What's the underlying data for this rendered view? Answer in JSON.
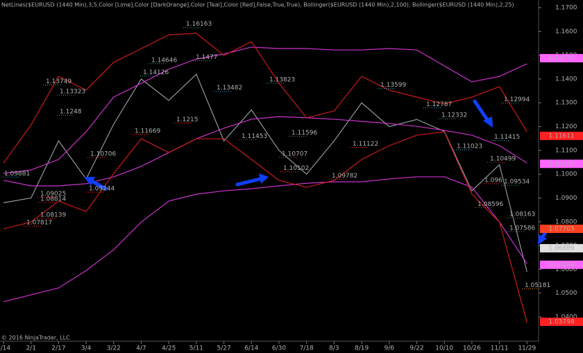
{
  "chart_data": {
    "type": "line",
    "title": "NetLines($EURUSD (1440 Min),3,5,Color [Lime],Color [DarkOrange],Color [Teal],Color [Red],False,True,True), Bollinger($EURUSD (1440 Min),2,100), Bollinger($EURUSD (1440 Min),2,25)",
    "copyright": "© 2016 NinjaTrader, LLC",
    "categories": [
      "1/14",
      "2/1",
      "2/17",
      "3/4",
      "3/22",
      "4/7",
      "4/25",
      "5/11",
      "5/27",
      "6/14",
      "6/30",
      "7/18",
      "8/3",
      "8/19",
      "9/6",
      "9/22",
      "10/10",
      "10/26",
      "11/11",
      "11/29"
    ],
    "ylim": [
      1.0304,
      1.1732
    ],
    "yticks": [
      {
        "value": 1.04,
        "label": "1.0400"
      },
      {
        "value": 1.05,
        "label": "1.0500"
      },
      {
        "value": 1.06,
        "label": "1.0600"
      },
      {
        "value": 1.07,
        "label": "1.0700"
      },
      {
        "value": 1.08,
        "label": "1.0800"
      },
      {
        "value": 1.09,
        "label": "1.0900"
      },
      {
        "value": 1.1,
        "label": "1.1000"
      },
      {
        "value": 1.11,
        "label": "1.1100"
      },
      {
        "value": 1.12,
        "label": "1.1200"
      },
      {
        "value": 1.13,
        "label": "1.1300"
      },
      {
        "value": 1.14,
        "label": "1.1400"
      },
      {
        "value": 1.15,
        "label": "1.1500"
      },
      {
        "value": 1.16,
        "label": "1.1600"
      },
      {
        "value": 1.17,
        "label": "1.1700"
      }
    ],
    "series": [
      {
        "color": "#8f9aa0",
        "values": [
          1.088,
          1.09,
          1.114,
          1.098,
          1.121,
          1.14,
          1.131,
          1.142,
          1.114,
          1.127,
          1.11,
          1.1,
          1.114,
          1.13,
          1.12,
          1.123,
          1.118,
          1.093,
          1.104,
          1.059
        ]
      },
      {
        "color": "#cc33cc",
        "values": [
          1.1003,
          1.1018,
          1.1062,
          1.1178,
          1.1324,
          1.1382,
          1.1441,
          1.1484,
          1.1505,
          1.1534,
          1.1528,
          1.1528,
          1.1522,
          1.1522,
          1.1528,
          1.1522,
          1.1455,
          1.1388,
          1.1411,
          1.1464
        ]
      },
      {
        "color": "#cc33cc",
        "values": [
          1.0974,
          1.0951,
          1.0951,
          1.096,
          1.0989,
          1.1033,
          1.1091,
          1.1149,
          1.1193,
          1.1231,
          1.1242,
          1.1237,
          1.1231,
          1.1222,
          1.1213,
          1.1201,
          1.1184,
          1.1164,
          1.112,
          1.1047
        ]
      },
      {
        "color": "#cc33cc",
        "values": [
          1.0464,
          1.0493,
          1.0522,
          1.0595,
          1.0683,
          1.0799,
          1.0887,
          1.0916,
          1.093,
          1.0939,
          1.0951,
          1.0962,
          1.0968,
          1.0968,
          1.098,
          1.0989,
          1.0989,
          1.0945,
          1.0799,
          1.0624
        ]
      },
      {
        "color": "#cc1a1a",
        "values": [
          1.1047,
          1.1207,
          1.1411,
          1.1353,
          1.147,
          1.1528,
          1.1586,
          1.1592,
          1.1499,
          1.1557,
          1.1382,
          1.1237,
          1.1266,
          1.1411,
          1.1353,
          1.1324,
          1.1295,
          1.1324,
          1.1368,
          1.1178
        ]
      },
      {
        "color": "#cc1a1a",
        "values": [
          1.077,
          1.0799,
          1.0887,
          1.0843,
          1.1003,
          1.1149,
          1.1091,
          1.1149,
          1.1149,
          1.1062,
          1.0974,
          1.0945,
          1.0974,
          1.1062,
          1.112,
          1.1164,
          1.1178,
          1.0916,
          1.0799,
          1.0377
        ]
      }
    ],
    "price_tags": [
      1.14876,
      1.11611,
      1.10435,
      1.07705,
      1.06889,
      1.06194,
      1.03798
    ],
    "price_tag_colors": [
      "#ff66ff",
      "#ff2020",
      "#ff66ff",
      "#ff4020",
      "#e0e0e0",
      "#ff66ff",
      "#ff2020"
    ],
    "annotations": [
      1.16163,
      1.1477,
      1.14646,
      1.14126,
      1.13749,
      1.13323,
      1.13482,
      1.13823,
      1.1248,
      1.13599,
      1.12787,
      1.12994,
      1.12332,
      1.11596,
      1.11415,
      1.09534,
      1.08163,
      1.07586,
      1.09881,
      1.11023,
      1.1215,
      1.11669,
      1.10706,
      1.09025,
      1.08814,
      1.08139,
      1.07817,
      1.09244,
      1.11453,
      1.10707,
      1.10102,
      1.09782,
      1.11122,
      1.08596,
      1.10499,
      1.096,
      1.05181
    ],
    "annotation_colors": [
      "#2aa8b8",
      "#2aa8b8",
      "#2aa8b8",
      "#2aa8b8",
      "#2aa8b8",
      "#2aa8b8",
      "#2aa8b8",
      "#2aa8b8",
      "#2aa8b8",
      "#2aa8b8",
      "#2aa8b8",
      "#2aa8b8",
      "#2aa8b8",
      "#2aa8b8",
      "#2aa8b8",
      "#2aa8b8",
      "#2aa8b8",
      "#2aa8b8",
      "#2aa8b8",
      "#2aa8b8",
      "#ff2a2a",
      "#ff2a2a",
      "#ff2a2a",
      "#ff2a2a",
      "#ff2a2a",
      "#ff2a2a",
      "#ff2a2a",
      "#ff2a2a",
      "#ff2a2a",
      "#ff2a2a",
      "#ff2a2a",
      "#ff2a2a",
      "#ff2a2a",
      "#ff2a2a",
      "#ff2a2a",
      "#ff2a2a",
      "#ff8c00"
    ]
  }
}
